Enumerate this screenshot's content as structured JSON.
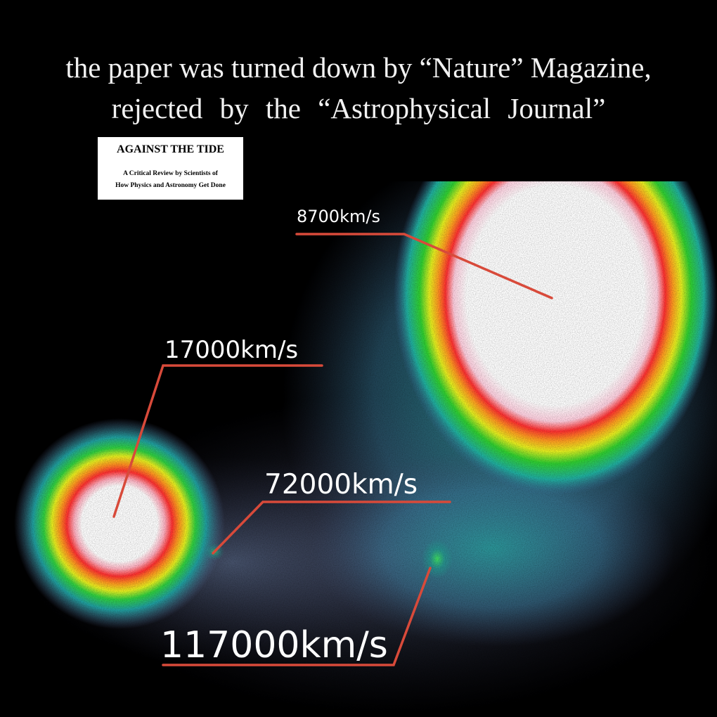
{
  "caption": {
    "line1": "the paper was turned down by “Nature” Magazine,",
    "line2": "rejected by the “Astrophysical Journal”"
  },
  "book_card": {
    "title": "AGAINST THE TIDE",
    "subtitle_line1": "A Critical Review by Scientists of",
    "subtitle_line2": "How Physics and Astronomy Get Done"
  },
  "velocity_labels": {
    "main_galaxy": "8700km/s",
    "left_object": "17000km/s",
    "bridge_object": "72000km/s",
    "lower_object": "117000km/s"
  },
  "colors": {
    "background": "#000000",
    "pointer_line": "#d84a3a",
    "caption_text": "#f2f2f2"
  }
}
